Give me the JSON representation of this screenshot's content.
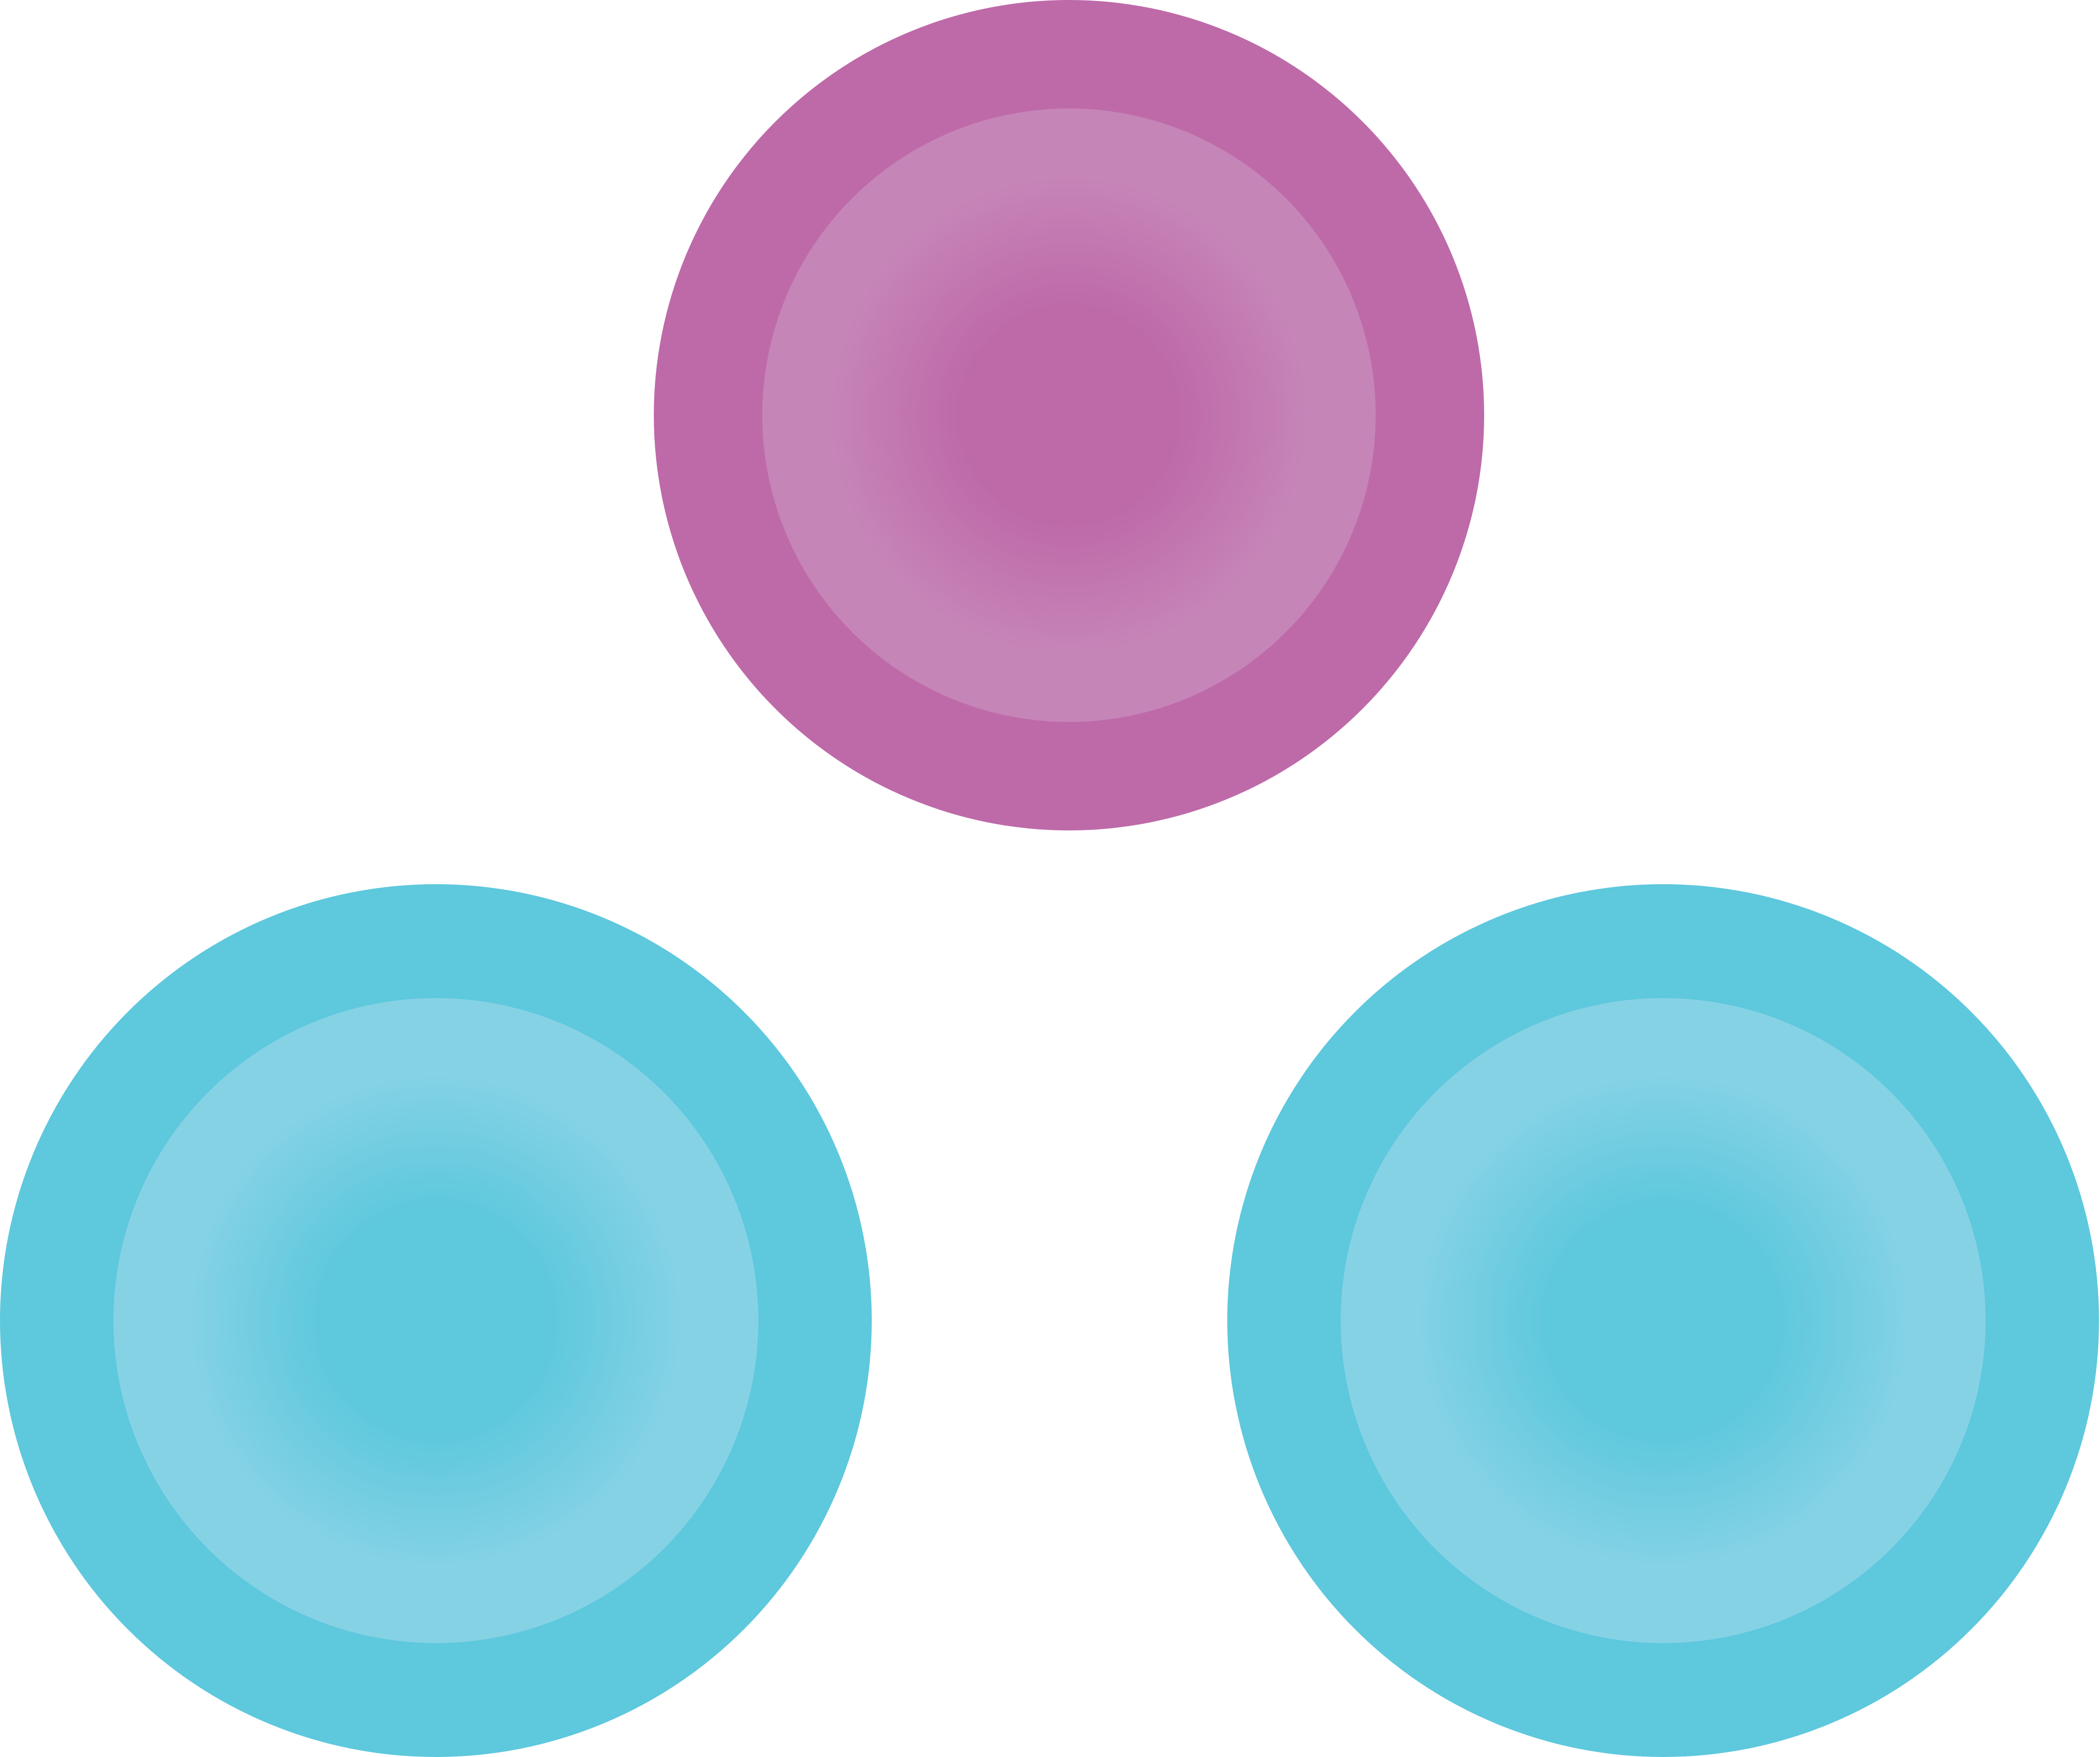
{
  "scene": {
    "background_color": "#ffffff",
    "shapes": [
      {
        "name": "magenta-disc",
        "shape": "circle-with-inner-radial-gradient",
        "outer_color": "#be6aa9",
        "inner_center_color": "#be6aa9",
        "inner_edge_color": "#c685b7"
      },
      {
        "name": "cyan-disc-left",
        "shape": "circle-with-inner-radial-gradient",
        "outer_color": "#5ec8dd",
        "inner_center_color": "#5ec8dd",
        "inner_edge_color": "#86d2e5"
      },
      {
        "name": "cyan-disc-right",
        "shape": "circle-with-inner-radial-gradient",
        "outer_color": "#5ec8dd",
        "inner_center_color": "#5ec8dd",
        "inner_edge_color": "#86d2e5"
      }
    ]
  }
}
